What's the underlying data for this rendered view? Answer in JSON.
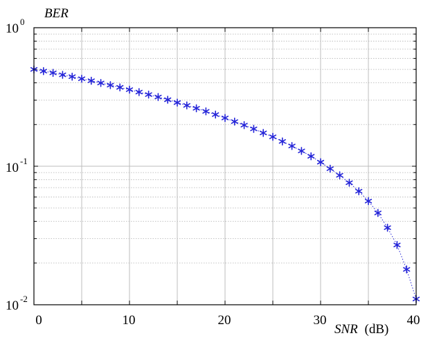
{
  "chart_data": {
    "type": "scatter",
    "ylabel": "BER",
    "xlabel_var": "SNR",
    "xlabel_unit": "(dB)",
    "x_ticks": [
      "0",
      "10",
      "20",
      "30",
      "40"
    ],
    "y_ticks": [
      {
        "base": "10",
        "exp": "0",
        "value": 1
      },
      {
        "base": "10",
        "exp": "-1",
        "value": 0.1
      },
      {
        "base": "10",
        "exp": "-2",
        "value": 0.01
      }
    ],
    "xlim": [
      0,
      40
    ],
    "ylim": [
      0.01,
      1
    ],
    "y_scale": "log",
    "grid": true,
    "marker": "*",
    "series_color": "#2424d8",
    "grid_color": "#bcbcbc",
    "series": [
      {
        "x": [
          0,
          1,
          2,
          3,
          4,
          5,
          6,
          7,
          8,
          9,
          10,
          11,
          12,
          13,
          14,
          15,
          16,
          17,
          18,
          19,
          20,
          21,
          22,
          23,
          24,
          25,
          26,
          27,
          28,
          29,
          30,
          31,
          32,
          33,
          34,
          35,
          36,
          37,
          38,
          39,
          40
        ],
        "y": [
          0.5,
          0.486,
          0.472,
          0.457,
          0.443,
          0.428,
          0.414,
          0.399,
          0.385,
          0.371,
          0.357,
          0.343,
          0.329,
          0.316,
          0.302,
          0.288,
          0.275,
          0.262,
          0.249,
          0.236,
          0.223,
          0.21,
          0.198,
          0.186,
          0.174,
          0.163,
          0.151,
          0.14,
          0.129,
          0.118,
          0.107,
          0.096,
          0.086,
          0.076,
          0.066,
          0.056,
          0.046,
          0.036,
          0.027,
          0.018,
          0.011
        ]
      }
    ]
  }
}
